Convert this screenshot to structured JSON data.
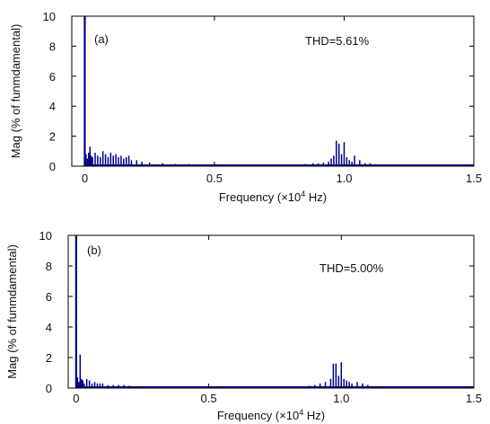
{
  "chart_data": [
    {
      "type": "bar",
      "panel_label": "(a)",
      "annotation": "THD=5.61%",
      "xlabel": {
        "pre": "Frequency (×10",
        "sup": "4",
        "post": " Hz)"
      },
      "ylabel": "Mag (% of funmdamental)",
      "xlim": [
        -0.05,
        1.5
      ],
      "ylim": [
        0,
        10
      ],
      "xticks": [
        {
          "value": 0,
          "label": "0"
        },
        {
          "value": 0.5,
          "label": "0.5"
        },
        {
          "value": 1,
          "label": "1.0"
        },
        {
          "value": 1.5,
          "label": "1.5"
        }
      ],
      "yticks": [
        {
          "value": 0,
          "label": "0"
        },
        {
          "value": 2,
          "label": "2"
        },
        {
          "value": 4,
          "label": "4"
        },
        {
          "value": 6,
          "label": "6"
        },
        {
          "value": 8,
          "label": "8"
        },
        {
          "value": 10,
          "label": "10"
        }
      ],
      "color": "#00008b",
      "grid": false,
      "x": [
        0.0,
        0.005,
        0.01,
        0.015,
        0.02,
        0.025,
        0.03,
        0.04,
        0.05,
        0.06,
        0.07,
        0.08,
        0.09,
        0.1,
        0.11,
        0.12,
        0.13,
        0.14,
        0.15,
        0.16,
        0.17,
        0.18,
        0.2,
        0.22,
        0.25,
        0.3,
        0.35,
        0.4,
        0.45,
        0.5,
        0.55,
        0.6,
        0.65,
        0.7,
        0.75,
        0.8,
        0.85,
        0.88,
        0.9,
        0.92,
        0.94,
        0.95,
        0.96,
        0.97,
        0.98,
        0.99,
        1.0,
        1.01,
        1.02,
        1.03,
        1.04,
        1.06,
        1.08,
        1.1,
        1.15,
        1.2,
        1.3,
        1.4,
        1.45
      ],
      "values": [
        10,
        0.8,
        0.5,
        0.9,
        1.3,
        0.7,
        0.6,
        0.9,
        0.7,
        0.6,
        1.0,
        0.8,
        0.6,
        0.9,
        0.7,
        0.8,
        0.6,
        0.7,
        0.5,
        0.6,
        0.7,
        0.4,
        0.4,
        0.3,
        0.25,
        0.2,
        0.15,
        0.15,
        0.1,
        0.1,
        0.1,
        0.1,
        0.1,
        0.1,
        0.1,
        0.1,
        0.15,
        0.2,
        0.2,
        0.25,
        0.3,
        0.5,
        0.7,
        1.7,
        1.5,
        0.8,
        1.6,
        0.6,
        0.4,
        0.3,
        0.7,
        0.4,
        0.2,
        0.2,
        0.1,
        0.1,
        0.05,
        0.05,
        0.05
      ]
    },
    {
      "type": "bar",
      "panel_label": "(b)",
      "annotation": "THD=5.00%",
      "xlabel": {
        "pre": "Frequency (×10",
        "sup": "4",
        "post": " Hz)"
      },
      "ylabel": "Mag (% of funmdamental)",
      "xlim": [
        -0.03,
        1.5
      ],
      "ylim": [
        0,
        10
      ],
      "xticks": [
        {
          "value": 0,
          "label": "0"
        },
        {
          "value": 0.5,
          "label": "0.5"
        },
        {
          "value": 1,
          "label": "1.0"
        },
        {
          "value": 1.5,
          "label": "1.5"
        }
      ],
      "yticks": [
        {
          "value": 0,
          "label": "0"
        },
        {
          "value": 2,
          "label": "2"
        },
        {
          "value": 4,
          "label": "4"
        },
        {
          "value": 6,
          "label": "6"
        },
        {
          "value": 8,
          "label": "8"
        },
        {
          "value": 10,
          "label": "10"
        }
      ],
      "color": "#00008b",
      "grid": false,
      "x": [
        0.0,
        0.005,
        0.01,
        0.015,
        0.02,
        0.025,
        0.03,
        0.04,
        0.05,
        0.06,
        0.07,
        0.08,
        0.09,
        0.1,
        0.12,
        0.14,
        0.16,
        0.18,
        0.2,
        0.25,
        0.3,
        0.35,
        0.4,
        0.45,
        0.5,
        0.55,
        0.6,
        0.65,
        0.7,
        0.75,
        0.8,
        0.85,
        0.88,
        0.9,
        0.92,
        0.94,
        0.96,
        0.97,
        0.98,
        0.99,
        1.0,
        1.01,
        1.02,
        1.03,
        1.04,
        1.06,
        1.08,
        1.1,
        1.12,
        1.2,
        1.3,
        1.4,
        1.45
      ],
      "values": [
        10,
        0.7,
        0.4,
        2.2,
        0.6,
        0.5,
        0.3,
        0.6,
        0.5,
        0.3,
        0.4,
        0.3,
        0.3,
        0.3,
        0.2,
        0.2,
        0.2,
        0.2,
        0.15,
        0.1,
        0.1,
        0.1,
        0.1,
        0.1,
        0.1,
        0.1,
        0.1,
        0.1,
        0.1,
        0.1,
        0.1,
        0.1,
        0.15,
        0.2,
        0.3,
        0.4,
        0.6,
        1.6,
        1.6,
        0.8,
        1.7,
        0.6,
        0.5,
        0.4,
        0.3,
        0.4,
        0.3,
        0.2,
        0.1,
        0.05,
        0.05,
        0.05,
        0.05
      ]
    }
  ]
}
